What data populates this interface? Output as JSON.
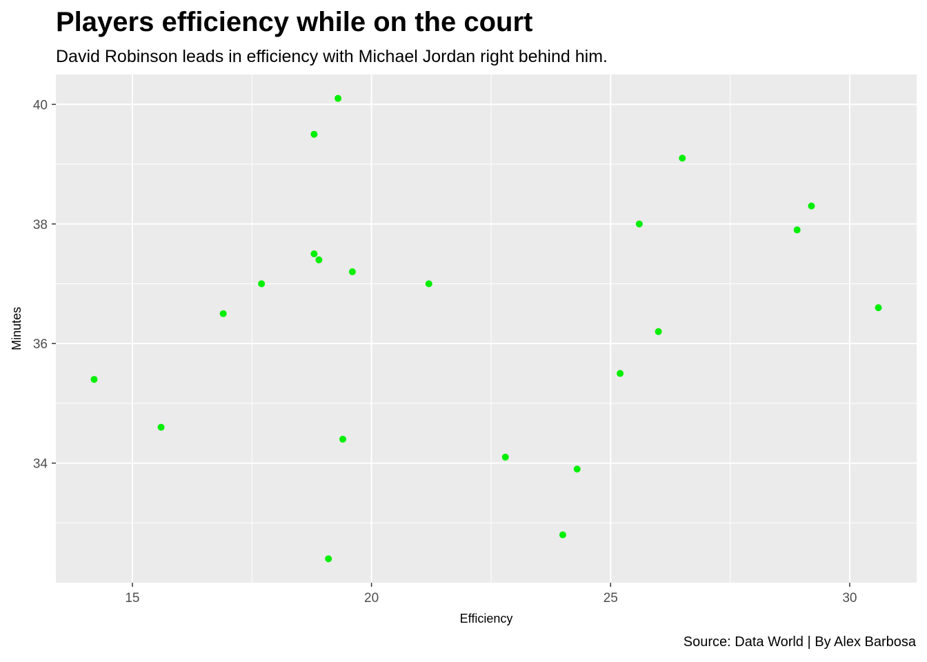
{
  "chart_data": {
    "type": "scatter",
    "title": "Players efficiency while on the court",
    "subtitle": "David Robinson leads in efficiency with Michael Jordan right behind him.",
    "caption": "Source: Data World | By Alex Barbosa",
    "xlabel": "Efficiency",
    "ylabel": "Minutes",
    "xlim": [
      13.4,
      31.4
    ],
    "ylim": [
      32.0,
      40.5
    ],
    "xticks": [
      15,
      20,
      25,
      30
    ],
    "yticks": [
      34,
      36,
      38,
      40
    ],
    "xtick_labels": [
      "15",
      "20",
      "25",
      "30"
    ],
    "ytick_labels": [
      "34",
      "36",
      "38",
      "40"
    ],
    "grid": true,
    "point_color": "#00ee00",
    "panel_color": "#ebebeb",
    "grid_color": "#ffffff",
    "points": [
      {
        "x": 14.2,
        "y": 35.4
      },
      {
        "x": 15.6,
        "y": 34.6
      },
      {
        "x": 16.9,
        "y": 36.5
      },
      {
        "x": 17.7,
        "y": 37.0
      },
      {
        "x": 18.8,
        "y": 39.5
      },
      {
        "x": 18.8,
        "y": 37.5
      },
      {
        "x": 18.9,
        "y": 37.4
      },
      {
        "x": 19.1,
        "y": 32.4
      },
      {
        "x": 19.3,
        "y": 40.1
      },
      {
        "x": 19.4,
        "y": 34.4
      },
      {
        "x": 19.6,
        "y": 37.2
      },
      {
        "x": 21.2,
        "y": 37.0
      },
      {
        "x": 22.8,
        "y": 34.1
      },
      {
        "x": 24.0,
        "y": 32.8
      },
      {
        "x": 24.3,
        "y": 33.9
      },
      {
        "x": 25.2,
        "y": 35.5
      },
      {
        "x": 25.6,
        "y": 38.0
      },
      {
        "x": 26.0,
        "y": 36.2
      },
      {
        "x": 26.5,
        "y": 39.1
      },
      {
        "x": 28.9,
        "y": 37.9
      },
      {
        "x": 29.2,
        "y": 38.3
      },
      {
        "x": 30.6,
        "y": 36.6
      }
    ]
  }
}
